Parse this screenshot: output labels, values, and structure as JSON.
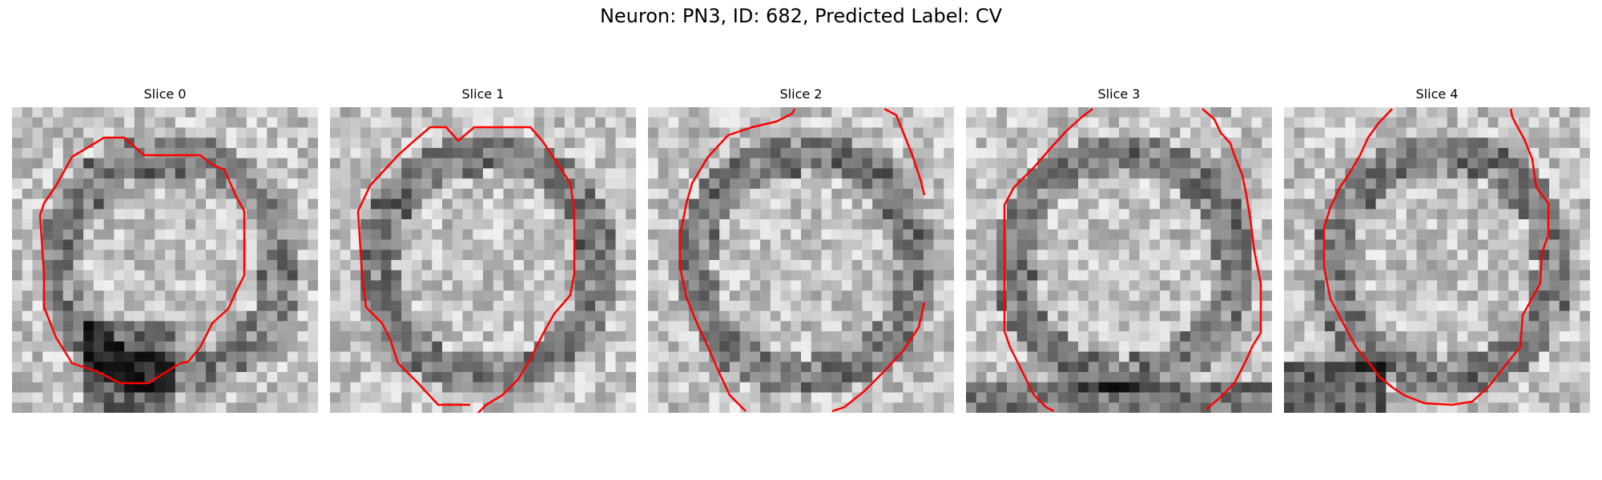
{
  "figure": {
    "title": "Neuron: PN3, ID: 682, Predicted Label: CV",
    "contour_color": "#ff0000",
    "image_colormap": "grayscale",
    "panels": [
      {
        "title": "Slice 0"
      },
      {
        "title": "Slice 1"
      },
      {
        "title": "Slice 2"
      },
      {
        "title": "Slice 3"
      },
      {
        "title": "Slice 4"
      }
    ]
  }
}
